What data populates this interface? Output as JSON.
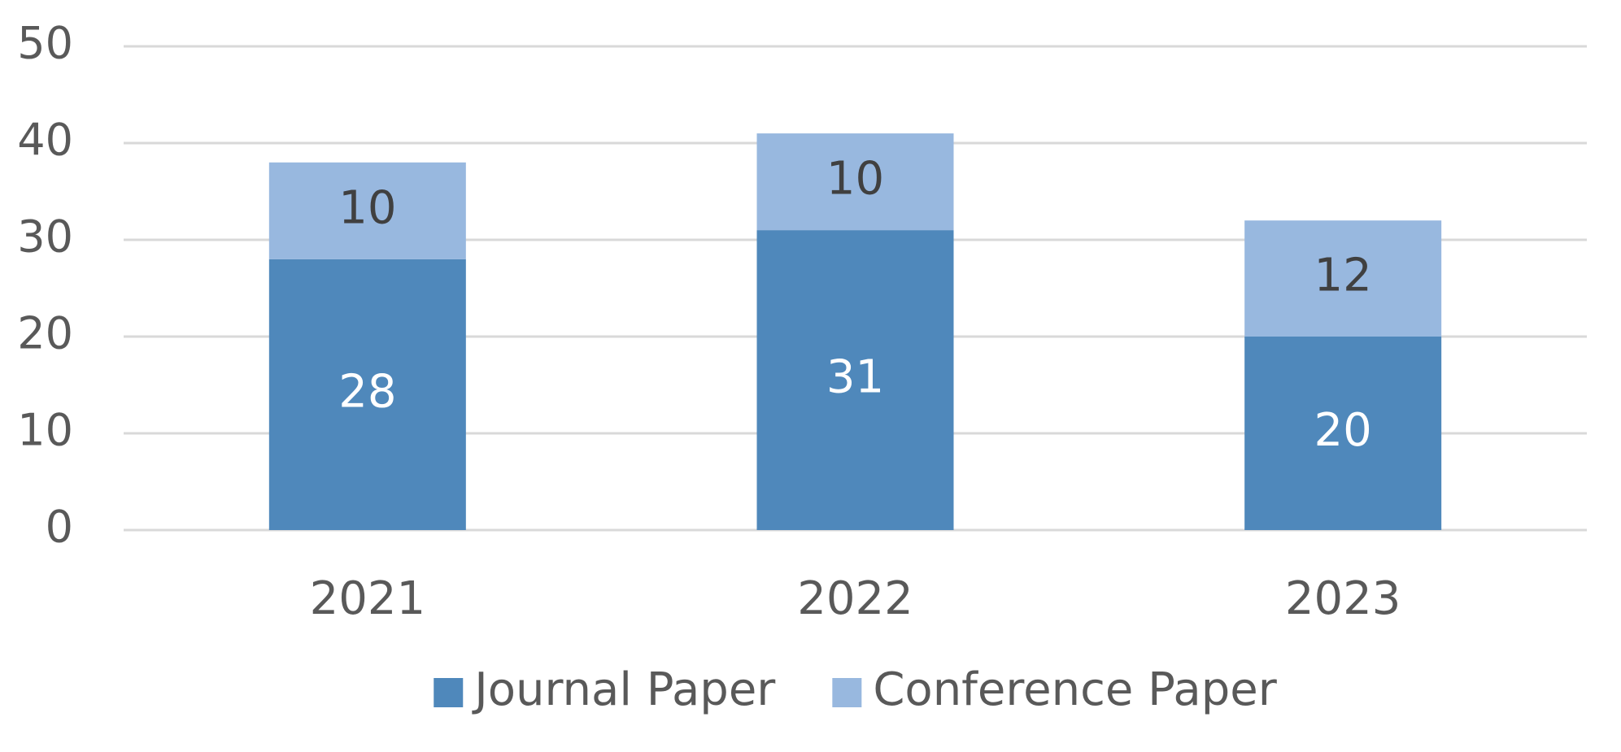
{
  "chart_data": {
    "type": "stacked_bar",
    "categories": [
      "2021",
      "2022",
      "2023"
    ],
    "series": [
      {
        "name": "Journal Paper",
        "color": "#4f88bb",
        "label_color": "#ffffff",
        "values": [
          28,
          31,
          20
        ]
      },
      {
        "name": "Conference Paper",
        "color": "#98b8df",
        "label_color": "#404040",
        "values": [
          10,
          10,
          12
        ]
      }
    ],
    "ylim": [
      0,
      50
    ],
    "yticks": [
      0,
      10,
      20,
      30,
      40,
      50
    ],
    "grid": true,
    "legend": "bottom"
  }
}
